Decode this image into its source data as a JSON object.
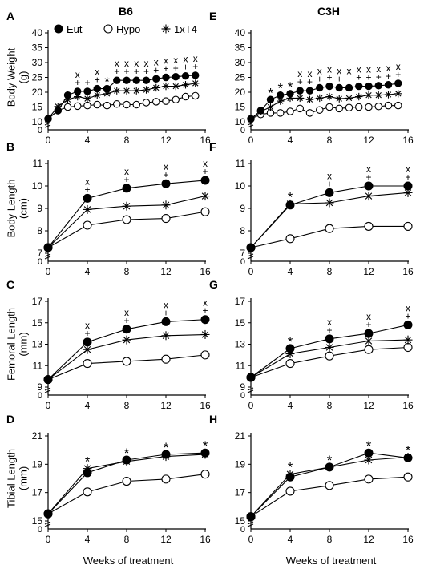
{
  "figure": {
    "xlabel": "Weeks of treatment",
    "columns": [
      "B6",
      "C3H"
    ]
  },
  "legend": [
    {
      "name": "Eut",
      "marker": "filled-circle"
    },
    {
      "name": "Hypo",
      "marker": "open-circle"
    },
    {
      "name": "1xT4",
      "marker": "asterisk"
    }
  ],
  "colors": {
    "line": "#000000",
    "background": "#ffffff"
  },
  "chart_data": [
    {
      "panel": "A",
      "type": "line",
      "column": "B6",
      "ylabel": "Body Weight\n(g)",
      "ylim": [
        10,
        40
      ],
      "yticks": [
        10,
        15,
        20,
        25,
        30,
        35,
        40
      ],
      "xlim": [
        0,
        16
      ],
      "xticks": [
        0,
        4,
        8,
        12,
        16
      ],
      "x": [
        0,
        1,
        2,
        3,
        4,
        5,
        6,
        7,
        8,
        9,
        10,
        11,
        12,
        13,
        14,
        15
      ],
      "series": [
        {
          "name": "Eut",
          "values": [
            11,
            13.8,
            19,
            20.3,
            20.3,
            21.2,
            21.2,
            24,
            24,
            24,
            24,
            24.5,
            25,
            25.2,
            25.5,
            25.7
          ]
        },
        {
          "name": "Hypo",
          "values": [
            11,
            13.8,
            15,
            15.3,
            15.5,
            15.8,
            15.5,
            16,
            15.8,
            15.8,
            16.5,
            16.8,
            17,
            17.5,
            18.5,
            18.8
          ]
        },
        {
          "name": "1xT4",
          "values": [
            11,
            15.2,
            17.5,
            18.5,
            17.8,
            19,
            19.5,
            20.5,
            20.5,
            20.5,
            20.8,
            21.5,
            22,
            22,
            22.5,
            23
          ]
        }
      ],
      "annotations": [
        {
          "x": 3,
          "marks": "x+"
        },
        {
          "x": 4,
          "marks": "+"
        },
        {
          "x": 5,
          "marks": "x+"
        },
        {
          "x": 6,
          "marks": "*"
        },
        {
          "x": 7,
          "marks": "x+"
        },
        {
          "x": 8,
          "marks": "x+"
        },
        {
          "x": 9,
          "marks": "x+"
        },
        {
          "x": 10,
          "marks": "x+"
        },
        {
          "x": 11,
          "marks": "x+"
        },
        {
          "x": 12,
          "marks": "x+"
        },
        {
          "x": 13,
          "marks": "x+"
        },
        {
          "x": 14,
          "marks": "x+"
        },
        {
          "x": 15,
          "marks": "x+"
        }
      ]
    },
    {
      "panel": "B",
      "type": "line",
      "column": "B6",
      "ylabel": "Body Length\n(cm)",
      "ylim": [
        7,
        11
      ],
      "yticks": [
        7,
        8,
        9,
        10,
        11
      ],
      "xlim": [
        0,
        16
      ],
      "xticks": [
        0,
        4,
        8,
        12,
        16
      ],
      "x": [
        0,
        4,
        8,
        12,
        16
      ],
      "series": [
        {
          "name": "Eut",
          "values": [
            7.25,
            9.45,
            9.9,
            10.1,
            10.25
          ]
        },
        {
          "name": "Hypo",
          "values": [
            7.25,
            8.25,
            8.5,
            8.55,
            8.85
          ]
        },
        {
          "name": "1xT4",
          "values": [
            7.25,
            8.95,
            9.1,
            9.15,
            9.55
          ]
        }
      ],
      "annotations": [
        {
          "x": 4,
          "marks": "x+"
        },
        {
          "x": 8,
          "marks": "x+"
        },
        {
          "x": 12,
          "marks": "x+"
        },
        {
          "x": 16,
          "marks": "x+"
        }
      ]
    },
    {
      "panel": "C",
      "type": "line",
      "column": "B6",
      "ylabel": "Femoral Length\n(mm)",
      "ylim": [
        9,
        17
      ],
      "yticks": [
        9,
        11,
        13,
        15,
        17
      ],
      "xlim": [
        0,
        16
      ],
      "xticks": [
        0,
        4,
        8,
        12,
        16
      ],
      "x": [
        0,
        4,
        8,
        12,
        16
      ],
      "series": [
        {
          "name": "Eut",
          "values": [
            9.7,
            13.2,
            14.4,
            15.1,
            15.3
          ]
        },
        {
          "name": "Hypo",
          "values": [
            9.7,
            11.2,
            11.4,
            11.6,
            12.0
          ]
        },
        {
          "name": "1xT4",
          "values": [
            9.7,
            12.5,
            13.4,
            13.8,
            13.9
          ]
        }
      ],
      "annotations": [
        {
          "x": 4,
          "marks": "x+"
        },
        {
          "x": 8,
          "marks": "x+"
        },
        {
          "x": 12,
          "marks": "x+"
        },
        {
          "x": 16,
          "marks": "x+"
        }
      ]
    },
    {
      "panel": "D",
      "type": "line",
      "column": "B6",
      "ylabel": "Tibial Length\n(mm)",
      "ylim": [
        15,
        21
      ],
      "yticks": [
        15,
        17,
        19,
        21
      ],
      "xlim": [
        0,
        16
      ],
      "xticks": [
        0,
        4,
        8,
        12,
        16
      ],
      "x": [
        0,
        4,
        8,
        12,
        16
      ],
      "series": [
        {
          "name": "Eut",
          "values": [
            15.5,
            18.4,
            19.3,
            19.7,
            19.8
          ]
        },
        {
          "name": "Hypo",
          "values": [
            15.5,
            17.05,
            17.8,
            17.95,
            18.3
          ]
        },
        {
          "name": "1xT4",
          "values": [
            15.5,
            18.7,
            19.2,
            19.55,
            19.7
          ]
        }
      ],
      "annotations": [
        {
          "x": 4,
          "marks": "*"
        },
        {
          "x": 8,
          "marks": "*"
        },
        {
          "x": 12,
          "marks": "*"
        },
        {
          "x": 16,
          "marks": "*"
        }
      ]
    },
    {
      "panel": "E",
      "type": "line",
      "column": "C3H",
      "ylabel": "",
      "ylim": [
        10,
        40
      ],
      "yticks": [
        10,
        15,
        20,
        25,
        30,
        35,
        40
      ],
      "xlim": [
        0,
        16
      ],
      "xticks": [
        0,
        4,
        8,
        12,
        16
      ],
      "x": [
        0,
        1,
        2,
        3,
        4,
        5,
        6,
        7,
        8,
        9,
        10,
        11,
        12,
        13,
        14,
        15
      ],
      "series": [
        {
          "name": "Eut",
          "values": [
            11,
            13.8,
            17.5,
            19,
            19.5,
            20.5,
            20.5,
            21.5,
            22,
            21.5,
            21.5,
            22,
            22,
            22.2,
            22.5,
            23
          ]
        },
        {
          "name": "Hypo",
          "values": [
            11,
            12.5,
            13,
            13,
            13.5,
            14.5,
            13,
            14,
            15,
            14.5,
            14.8,
            15,
            15,
            15.2,
            15.5,
            15.5
          ]
        },
        {
          "name": "1xT4",
          "values": [
            11,
            13.5,
            15,
            17,
            18,
            18,
            17.5,
            18,
            18.5,
            17.8,
            18,
            18.5,
            19,
            19,
            19.2,
            19.5
          ]
        }
      ],
      "annotations": [
        {
          "x": 2,
          "marks": "*"
        },
        {
          "x": 3,
          "marks": "*"
        },
        {
          "x": 4,
          "marks": "*"
        },
        {
          "x": 5,
          "marks": "x+"
        },
        {
          "x": 6,
          "marks": "x+"
        },
        {
          "x": 7,
          "marks": "x+"
        },
        {
          "x": 8,
          "marks": "x+"
        },
        {
          "x": 9,
          "marks": "x+"
        },
        {
          "x": 10,
          "marks": "x+"
        },
        {
          "x": 11,
          "marks": "x+"
        },
        {
          "x": 12,
          "marks": "x+"
        },
        {
          "x": 13,
          "marks": "x+"
        },
        {
          "x": 14,
          "marks": "x+"
        },
        {
          "x": 15,
          "marks": "x+"
        }
      ]
    },
    {
      "panel": "F",
      "type": "line",
      "column": "C3H",
      "ylabel": "",
      "ylim": [
        7,
        11
      ],
      "yticks": [
        7,
        8,
        9,
        10,
        11
      ],
      "xlim": [
        0,
        16
      ],
      "xticks": [
        0,
        4,
        8,
        12,
        16
      ],
      "x": [
        0,
        4,
        8,
        12,
        16
      ],
      "series": [
        {
          "name": "Eut",
          "values": [
            7.25,
            9.15,
            9.7,
            10.0,
            10.0
          ]
        },
        {
          "name": "Hypo",
          "values": [
            7.25,
            7.65,
            8.1,
            8.2,
            8.2
          ]
        },
        {
          "name": "1xT4",
          "values": [
            7.25,
            9.2,
            9.25,
            9.55,
            9.7
          ]
        }
      ],
      "annotations": [
        {
          "x": 4,
          "marks": "*"
        },
        {
          "x": 8,
          "marks": "x+"
        },
        {
          "x": 12,
          "marks": "x+"
        },
        {
          "x": 16,
          "marks": "x+"
        }
      ]
    },
    {
      "panel": "G",
      "type": "line",
      "column": "C3H",
      "ylabel": "",
      "ylim": [
        9,
        17
      ],
      "yticks": [
        9,
        11,
        13,
        15,
        17
      ],
      "xlim": [
        0,
        16
      ],
      "xticks": [
        0,
        4,
        8,
        12,
        16
      ],
      "x": [
        0,
        4,
        8,
        12,
        16
      ],
      "series": [
        {
          "name": "Eut",
          "values": [
            9.9,
            12.6,
            13.5,
            14.0,
            14.8
          ]
        },
        {
          "name": "Hypo",
          "values": [
            9.9,
            11.2,
            11.9,
            12.5,
            12.7
          ]
        },
        {
          "name": "1xT4",
          "values": [
            9.9,
            12.1,
            12.7,
            13.3,
            13.4
          ]
        }
      ],
      "annotations": [
        {
          "x": 4,
          "marks": "*"
        },
        {
          "x": 8,
          "marks": "x+"
        },
        {
          "x": 12,
          "marks": "x+"
        },
        {
          "x": 16,
          "marks": "x+"
        }
      ]
    },
    {
      "panel": "H",
      "type": "line",
      "column": "C3H",
      "ylabel": "",
      "ylim": [
        15,
        21
      ],
      "yticks": [
        15,
        17,
        19,
        21
      ],
      "xlim": [
        0,
        16
      ],
      "xticks": [
        0,
        4,
        8,
        12,
        16
      ],
      "x": [
        0,
        4,
        8,
        12,
        16
      ],
      "series": [
        {
          "name": "Eut",
          "values": [
            15.3,
            18.1,
            18.8,
            19.8,
            19.45
          ]
        },
        {
          "name": "Hypo",
          "values": [
            15.3,
            17.1,
            17.5,
            17.95,
            18.1
          ]
        },
        {
          "name": "1xT4",
          "values": [
            15.3,
            18.3,
            18.8,
            19.3,
            19.5
          ]
        }
      ],
      "annotations": [
        {
          "x": 4,
          "marks": "*"
        },
        {
          "x": 8,
          "marks": "*"
        },
        {
          "x": 12,
          "marks": "*"
        },
        {
          "x": 16,
          "marks": "*"
        }
      ]
    }
  ]
}
